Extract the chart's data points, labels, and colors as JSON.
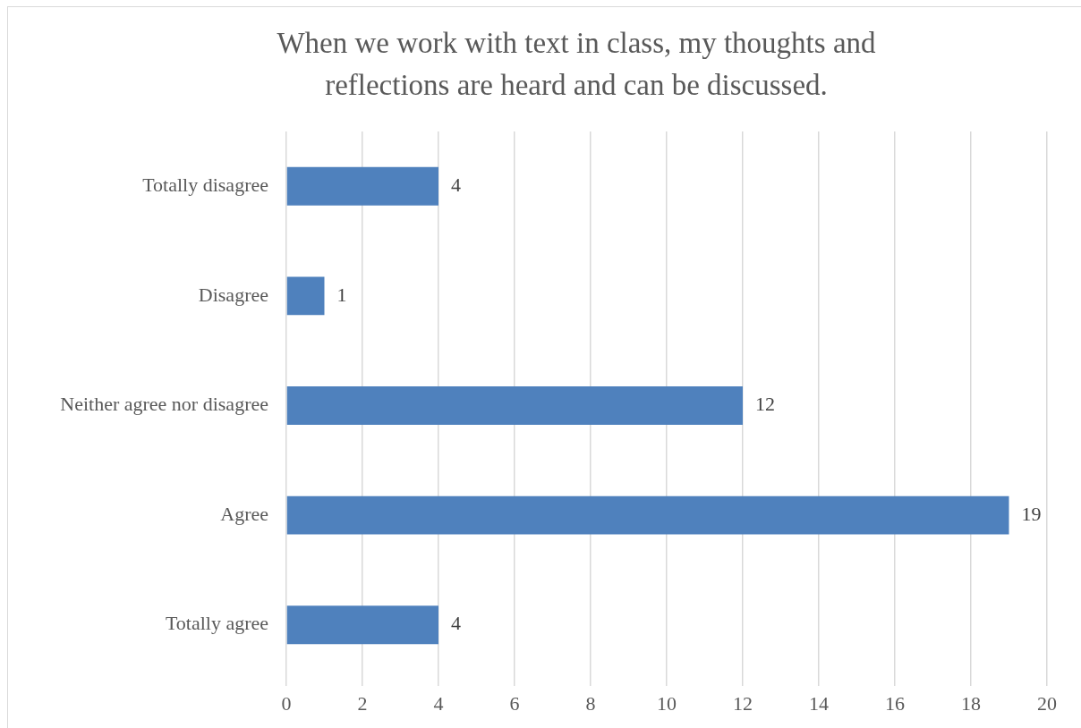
{
  "chart_data": {
    "type": "bar",
    "orientation": "horizontal",
    "title": "When we work with text in class, my thoughts and reflections are heard and can be discussed.",
    "categories": [
      "Totally disagree",
      "Disagree",
      "Neither agree nor disagree",
      "Agree",
      "Totally agree"
    ],
    "values": [
      4,
      1,
      12,
      19,
      4
    ],
    "color": "#4f81bd",
    "xlim": [
      0,
      20
    ],
    "xticks": [
      0,
      2,
      4,
      6,
      8,
      10,
      12,
      14,
      16,
      18,
      20
    ],
    "grid": "x",
    "data_labels": true
  }
}
